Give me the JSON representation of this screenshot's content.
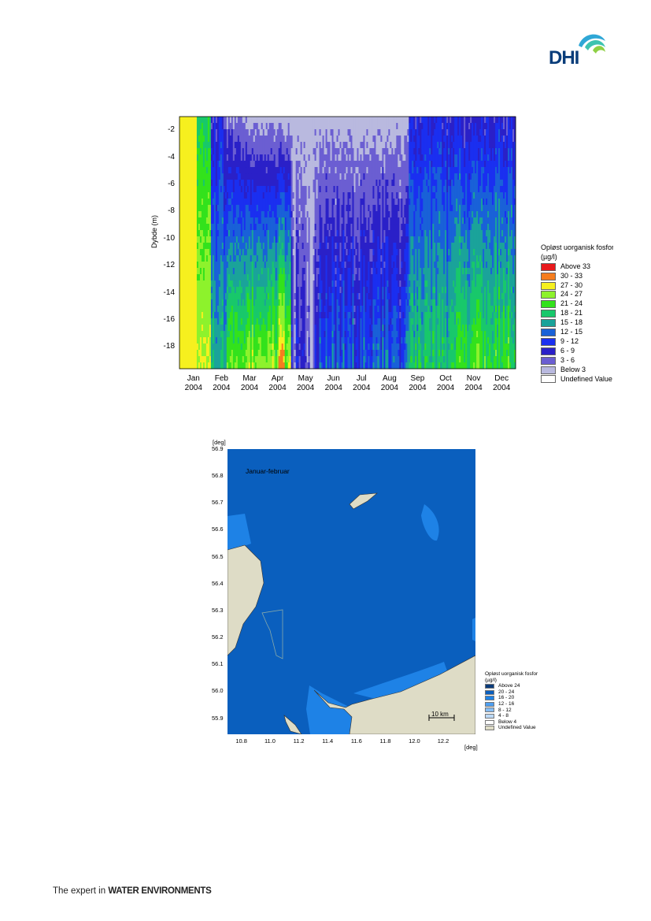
{
  "logo": {
    "text": "DHI"
  },
  "profile_chart": {
    "ylabel": "Dybde (m)",
    "yticks": [
      "-2",
      "-4",
      "-6",
      "-8",
      "-10",
      "-12",
      "-14",
      "-16",
      "-18"
    ],
    "xticks": [
      {
        "m": "Jan",
        "y": "2004"
      },
      {
        "m": "Feb",
        "y": "2004"
      },
      {
        "m": "Mar",
        "y": "2004"
      },
      {
        "m": "Apr",
        "y": "2004"
      },
      {
        "m": "May",
        "y": "2004"
      },
      {
        "m": "Jun",
        "y": "2004"
      },
      {
        "m": "Jul",
        "y": "2004"
      },
      {
        "m": "Aug",
        "y": "2004"
      },
      {
        "m": "Sep",
        "y": "2004"
      },
      {
        "m": "Oct",
        "y": "2004"
      },
      {
        "m": "Nov",
        "y": "2004"
      },
      {
        "m": "Dec",
        "y": "2004"
      }
    ],
    "legend_title": "Opløst uorganisk fosfor",
    "legend_unit": "(µg/l)",
    "legend": [
      {
        "label": "Above 33",
        "color": "#e8191c"
      },
      {
        "label": "30 - 33",
        "color": "#f57d1e"
      },
      {
        "label": "27 - 30",
        "color": "#f6f01f"
      },
      {
        "label": "24 - 27",
        "color": "#8df22c"
      },
      {
        "label": "21 - 24",
        "color": "#33e21c"
      },
      {
        "label": "18 - 21",
        "color": "#18c86b"
      },
      {
        "label": "15 - 18",
        "color": "#1aa39a"
      },
      {
        "label": "12 - 15",
        "color": "#1961d8"
      },
      {
        "label": "9 - 12",
        "color": "#1a2ff0"
      },
      {
        "label": "6 - 9",
        "color": "#2a20c8"
      },
      {
        "label": "3 - 6",
        "color": "#6b5ed2"
      },
      {
        "label": "Below 3",
        "color": "#b9b9df"
      },
      {
        "label": "Undefined Value",
        "color": "#ffffff"
      }
    ]
  },
  "map": {
    "unit_top": "[deg]",
    "unit_right": "[deg]",
    "panel_label": "Januar-februar",
    "yticks": [
      "56.9",
      "56.8",
      "56.7",
      "56.6",
      "56.5",
      "56.4",
      "56.3",
      "56.2",
      "56.1",
      "56.0",
      "55.9"
    ],
    "xticks": [
      "10.8",
      "11.0",
      "11.2",
      "11.4",
      "11.6",
      "11.8",
      "12.0",
      "12.2"
    ],
    "scale_label": "10 km",
    "legend_title": "Opløst uorganisk fosfor",
    "legend_unit": "(µg/l)",
    "legend": [
      {
        "label": "Above 24",
        "color": "#0b3c7c"
      },
      {
        "label": "20 - 24",
        "color": "#0a5fbe"
      },
      {
        "label": "16 - 20",
        "color": "#1e82e6"
      },
      {
        "label": "12 - 16",
        "color": "#4e9ff0"
      },
      {
        "label": "8 - 12",
        "color": "#86bdf4"
      },
      {
        "label": "4 - 8",
        "color": "#bcd9f7"
      },
      {
        "label": "Below 4",
        "color": "#ffffff"
      },
      {
        "label": "Undefined Value",
        "color": "#dedcc6"
      }
    ]
  },
  "footer": {
    "prefix": "The expert in ",
    "bold": "WATER ENVIRONMENTS"
  }
}
